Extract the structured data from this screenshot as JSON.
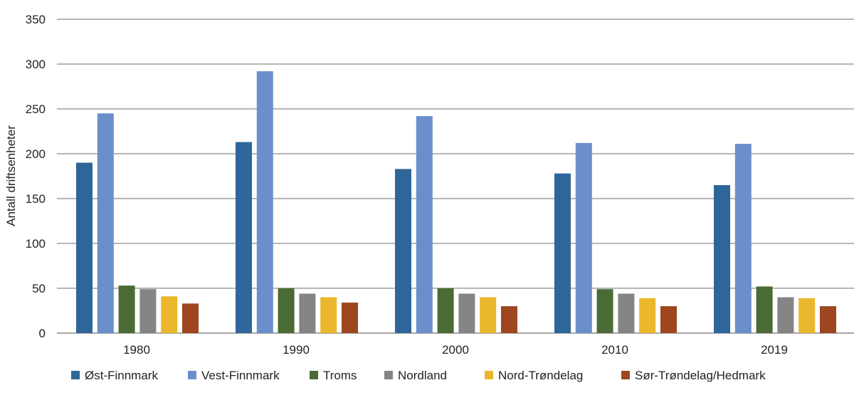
{
  "chart_data": {
    "type": "bar",
    "title": "",
    "xlabel": "",
    "ylabel": "Antall driftsenheter",
    "ylim": [
      0,
      350
    ],
    "yticks": [
      0,
      50,
      100,
      150,
      200,
      250,
      300,
      350
    ],
    "grid": true,
    "legend_placement": "bottom",
    "categories": [
      "1980",
      "1990",
      "2000",
      "2010",
      "2019"
    ],
    "series": [
      {
        "name": "Øst-Finnmark",
        "color": "#2f6699",
        "values": [
          190,
          213,
          183,
          178,
          165
        ]
      },
      {
        "name": "Vest-Finnmark",
        "color": "#6a8fcb",
        "values": [
          245,
          292,
          242,
          212,
          211
        ]
      },
      {
        "name": "Troms",
        "color": "#4a6c34",
        "values": [
          53,
          50,
          50,
          49,
          52
        ]
      },
      {
        "name": "Nordland",
        "color": "#858585",
        "values": [
          49,
          44,
          44,
          44,
          40
        ]
      },
      {
        "name": "Nord-Trøndelag",
        "color": "#ebb72d",
        "values": [
          41,
          40,
          40,
          39,
          39
        ]
      },
      {
        "name": "Sør-Trøndelag/Hedmark",
        "color": "#9d461f",
        "values": [
          33,
          34,
          30,
          30,
          30
        ]
      }
    ]
  }
}
